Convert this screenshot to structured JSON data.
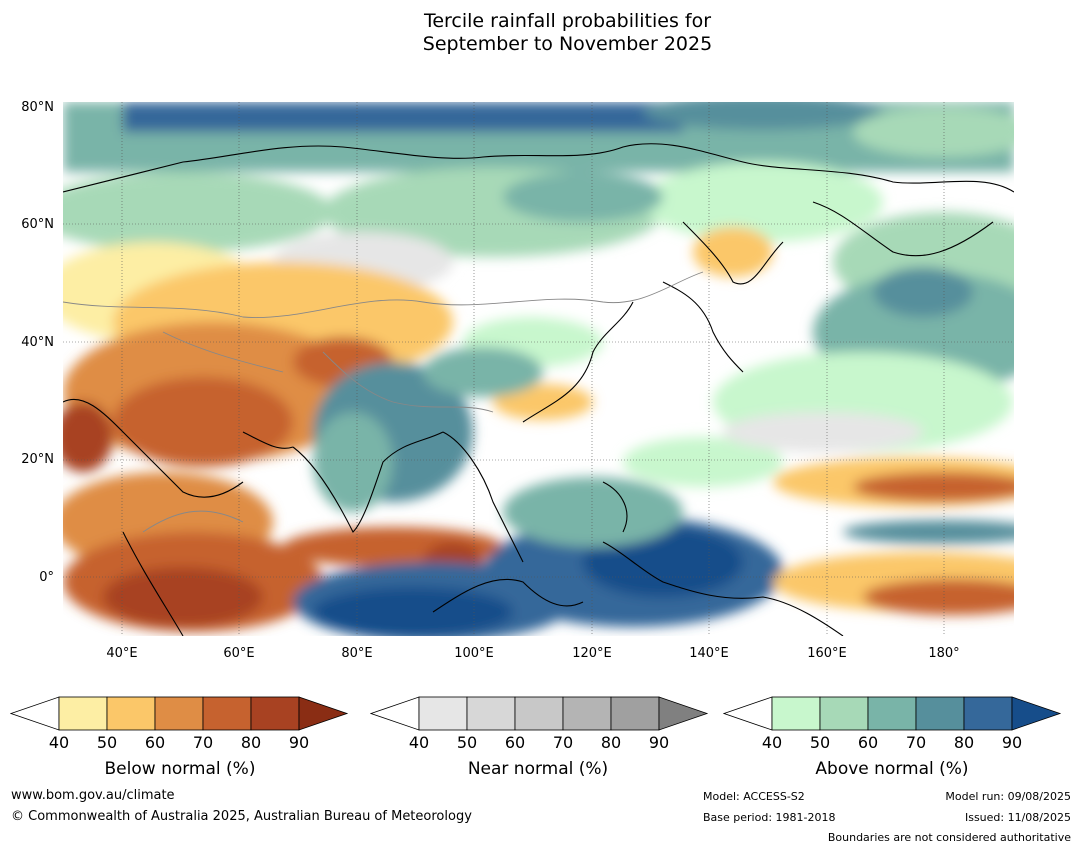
{
  "title_line1": "Tercile rainfall probabilities for",
  "title_line2": "September to November 2025",
  "lat_labels": [
    "80°N",
    "60°N",
    "40°N",
    "20°N",
    "0°"
  ],
  "lon_labels": [
    "40°E",
    "60°E",
    "80°E",
    "100°E",
    "120°E",
    "140°E",
    "160°E",
    "180°"
  ],
  "colorbars": {
    "below": {
      "label": "Below normal (%)",
      "ticks": [
        "40",
        "50",
        "60",
        "70",
        "80",
        "90"
      ],
      "colors": [
        "#fdeea4",
        "#fbc769",
        "#df8d45",
        "#c6622f",
        "#a84222",
        "#8a2d14"
      ]
    },
    "near": {
      "label": "Near normal (%)",
      "ticks": [
        "40",
        "50",
        "60",
        "70",
        "80",
        "90"
      ],
      "colors": [
        "#e6e6e6",
        "#d7d7d7",
        "#c8c8c8",
        "#b4b4b4",
        "#a0a0a0",
        "#808080"
      ]
    },
    "above": {
      "label": "Above normal (%)",
      "ticks": [
        "40",
        "50",
        "60",
        "70",
        "80",
        "90"
      ],
      "colors": [
        "#c8f7cd",
        "#a7d9b7",
        "#79b4a8",
        "#568f9c",
        "#35689a",
        "#164d8a"
      ]
    }
  },
  "footer": {
    "website": "www.bom.gov.au/climate",
    "copyright": "© Commonwealth of Australia 2025, Australian Bureau of Meteorology",
    "model": "Model: ACCESS-S2",
    "base_period": "Base period: 1981-2018",
    "model_run": "Model run: 09/08/2025",
    "issued": "Issued: 11/08/2025",
    "boundaries": "Boundaries are not considered authoritative"
  }
}
